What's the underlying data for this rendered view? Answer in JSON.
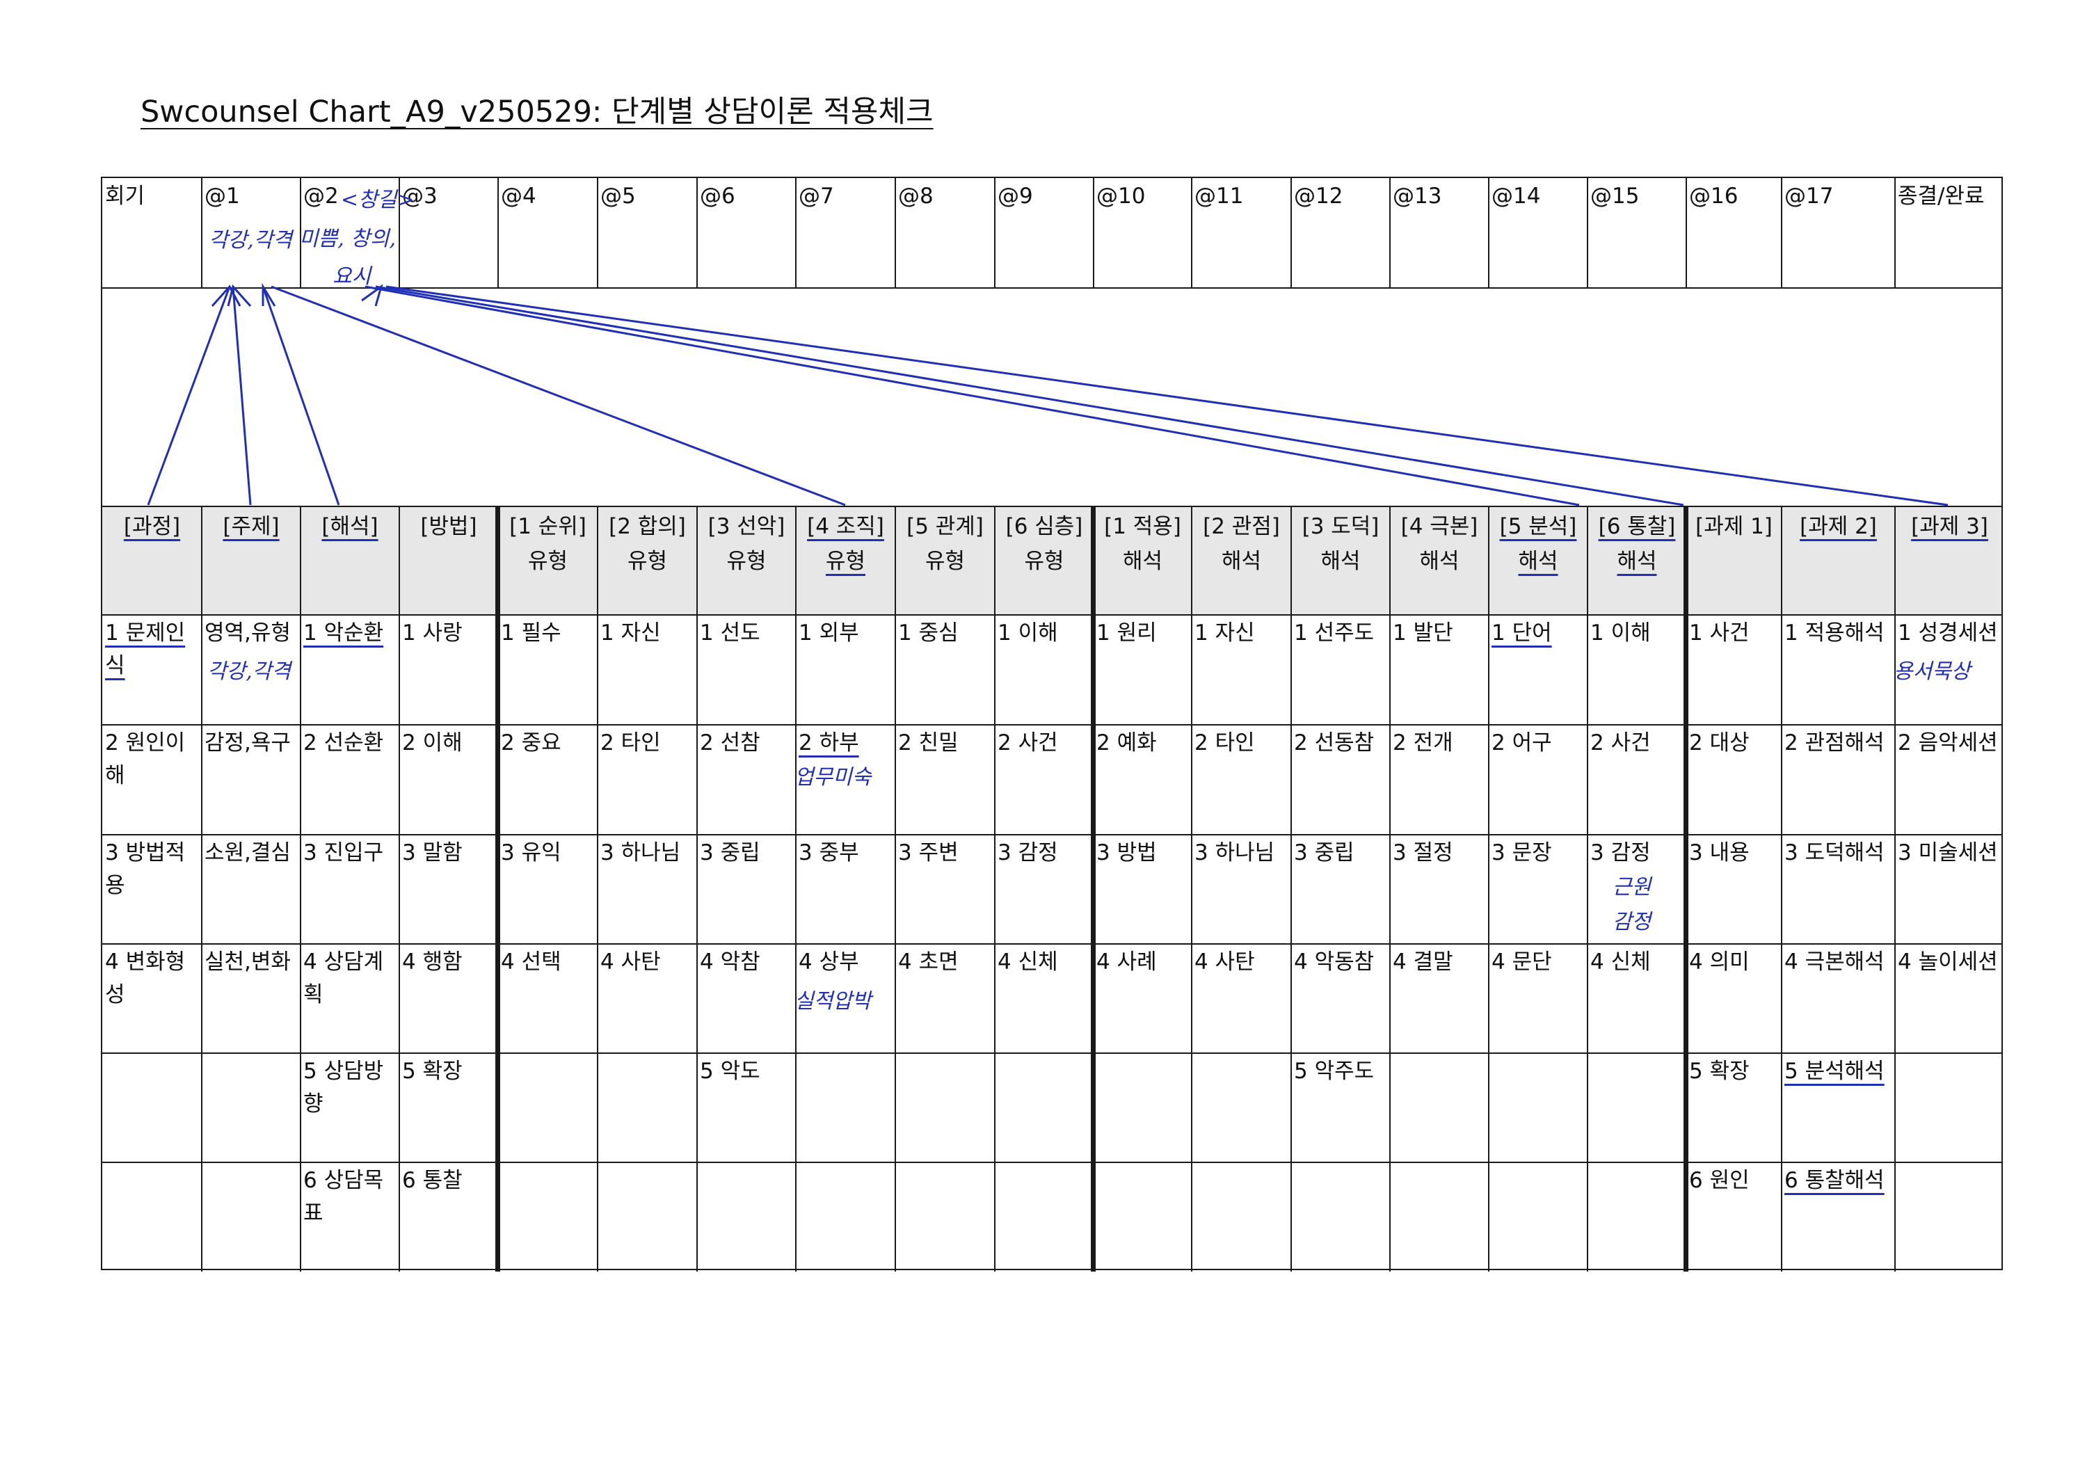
{
  "title": "Swcounsel Chart_A9_v250529: 단계별 상담이론 적용체크",
  "session_row": {
    "label": "회기",
    "sessions": [
      "@1",
      "@2",
      "@3",
      "@4",
      "@5",
      "@6",
      "@7",
      "@8",
      "@9",
      "@10",
      "@11",
      "@12",
      "@13",
      "@14",
      "@15",
      "@16",
      "@17"
    ],
    "end": "종결/완료"
  },
  "columns": [
    {
      "h1": "[과정]",
      "h2": "",
      "items": [
        "1 문제인식",
        "2 원인이해",
        "3 방법적용",
        "4 변화형성",
        "",
        ""
      ]
    },
    {
      "h1": "[주제]",
      "h2": "",
      "items": [
        "영역,유형",
        "감정,욕구",
        "소원,결심",
        "실천,변화",
        "",
        ""
      ]
    },
    {
      "h1": "[해석]",
      "h2": "",
      "items": [
        "1 악순환",
        "2 선순환",
        "3 진입구",
        "4 상담계획",
        "5 상담방향",
        "6 상담목표"
      ]
    },
    {
      "h1": "[방법]",
      "h2": "",
      "items": [
        "1 사랑",
        "2 이해",
        "3 말함",
        "4 행함",
        "5 확장",
        "6 통찰"
      ]
    },
    {
      "h1": "[1 순위]",
      "h2": "유형",
      "items": [
        "1 필수",
        "2 중요",
        "3 유익",
        "4 선택",
        "",
        ""
      ]
    },
    {
      "h1": "[2 합의]",
      "h2": "유형",
      "items": [
        "1 자신",
        "2 타인",
        "3 하나님",
        "4 사탄",
        "",
        ""
      ]
    },
    {
      "h1": "[3 선악]",
      "h2": "유형",
      "items": [
        "1 선도",
        "2 선참",
        "3 중립",
        "4 악참",
        "5 악도",
        ""
      ]
    },
    {
      "h1": "[4 조직]",
      "h2": "유형",
      "items": [
        "1 외부",
        "2 하부",
        "3 중부",
        "4 상부",
        "",
        ""
      ]
    },
    {
      "h1": "[5 관계]",
      "h2": "유형",
      "items": [
        "1 중심",
        "2 친밀",
        "3 주변",
        "4 초면",
        "",
        ""
      ]
    },
    {
      "h1": "[6 심층]",
      "h2": "유형",
      "items": [
        "1 이해",
        "2 사건",
        "3 감정",
        "4 신체",
        "",
        ""
      ]
    },
    {
      "h1": "[1 적용]",
      "h2": "해석",
      "items": [
        "1 원리",
        "2 예화",
        "3 방법",
        "4 사례",
        "",
        ""
      ]
    },
    {
      "h1": "[2 관점]",
      "h2": "해석",
      "items": [
        "1 자신",
        "2 타인",
        "3 하나님",
        "4 사탄",
        "",
        ""
      ]
    },
    {
      "h1": "[3 도덕]",
      "h2": "해석",
      "items": [
        "1 선주도",
        "2 선동참",
        "3 중립",
        "4 악동참",
        "5 악주도",
        ""
      ]
    },
    {
      "h1": "[4 극본]",
      "h2": "해석",
      "items": [
        "1 발단",
        "2 전개",
        "3 절정",
        "4 결말",
        "",
        ""
      ]
    },
    {
      "h1": "[5 분석]",
      "h2": "해석",
      "items": [
        "1 단어",
        "2 어구",
        "3 문장",
        "4 문단",
        "",
        ""
      ]
    },
    {
      "h1": "[6 통찰]",
      "h2": "해석",
      "items": [
        "1 이해",
        "2 사건",
        "3 감정",
        "4 신체",
        "",
        ""
      ]
    },
    {
      "h1": "[과제 1]",
      "h2": "",
      "items": [
        "1 사건",
        "2 대상",
        "3 내용",
        "4 의미",
        "5 확장",
        "6 원인"
      ]
    },
    {
      "h1": "[과제 2]",
      "h2": "",
      "items": [
        "1 적용해석",
        "2 관점해석",
        "3 도덕해석",
        "4 극본해석",
        "5 분석해석",
        "6 통찰해석"
      ]
    },
    {
      "h1": "[과제 3]",
      "h2": "",
      "items": [
        "1 성경세션",
        "2 음악세션",
        "3 미술세션",
        "4 놀이세션",
        "",
        ""
      ]
    }
  ],
  "handwriting": {
    "s1": "각강,각격",
    "s2_tag": "<창길>",
    "s2_a": "미쁨, 창의,",
    "s2_b": "요시",
    "c1": "각강,각격",
    "c7_1": "업무미숙",
    "c7_3": "실적압박",
    "c15_2": "근원",
    "c15_3": "감정",
    "c18": "용서묵상"
  },
  "colors": {
    "ink": "#1a1a1a",
    "pen": "#1f2fb6",
    "header_band": "#e7e7e7"
  }
}
